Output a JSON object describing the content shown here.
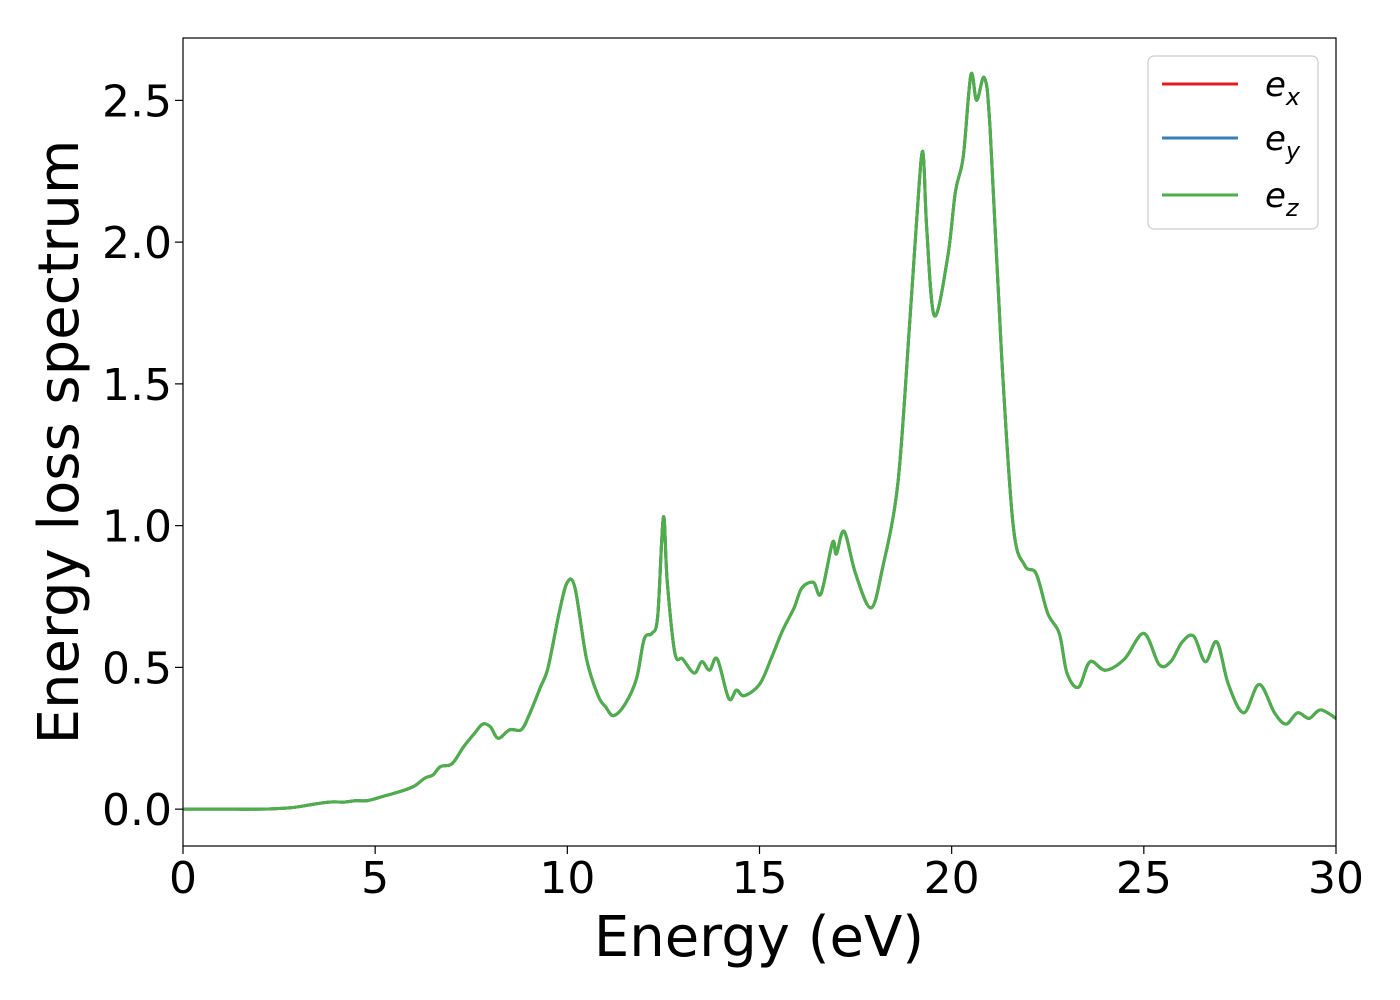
{
  "chart_data": {
    "type": "line",
    "xlabel": "Energy (eV)",
    "ylabel": "Energy loss spectrum",
    "xlim": [
      0,
      30
    ],
    "ylim": [
      -0.13,
      2.72
    ],
    "xticks": [
      0,
      5,
      10,
      15,
      20,
      25,
      30
    ],
    "xtick_labels": [
      "0",
      "5",
      "10",
      "15",
      "20",
      "25",
      "30"
    ],
    "yticks": [
      0.0,
      0.5,
      1.0,
      1.5,
      2.0,
      2.5
    ],
    "ytick_labels": [
      "0.0",
      "0.5",
      "1.0",
      "1.5",
      "2.0",
      "2.5"
    ],
    "grid": false,
    "legend_position": "top-right",
    "x": [
      0,
      1,
      2,
      2.8,
      3.3,
      3.8,
      4.2,
      4.5,
      4.8,
      5.2,
      5.6,
      6.0,
      6.3,
      6.5,
      6.7,
      7.0,
      7.3,
      7.6,
      7.8,
      8.0,
      8.2,
      8.5,
      8.8,
      9.0,
      9.3,
      9.5,
      9.8,
      10.0,
      10.2,
      10.5,
      10.8,
      11.0,
      11.2,
      11.5,
      11.8,
      12.0,
      12.2,
      12.35,
      12.5,
      12.6,
      12.8,
      13.0,
      13.3,
      13.5,
      13.7,
      13.9,
      14.2,
      14.4,
      14.6,
      15.0,
      15.3,
      15.6,
      15.9,
      16.1,
      16.4,
      16.6,
      16.9,
      17.0,
      17.2,
      17.5,
      17.9,
      18.2,
      18.6,
      18.9,
      19.1,
      19.25,
      19.35,
      19.55,
      19.9,
      20.1,
      20.3,
      20.5,
      20.65,
      20.85,
      21.0,
      21.3,
      21.6,
      21.9,
      22.2,
      22.5,
      22.8,
      23.0,
      23.3,
      23.6,
      24.0,
      24.5,
      25.0,
      25.4,
      25.7,
      26.0,
      26.3,
      26.6,
      26.9,
      27.2,
      27.6,
      28.0,
      28.4,
      28.7,
      29.0,
      29.3,
      29.6,
      30.0
    ],
    "series": [
      {
        "name": "e_x",
        "label_base": "e",
        "label_sub": "x",
        "color": "#e41a1c",
        "values": [
          0.0,
          0.0,
          0.0,
          0.005,
          0.015,
          0.025,
          0.025,
          0.03,
          0.03,
          0.045,
          0.06,
          0.08,
          0.11,
          0.12,
          0.15,
          0.16,
          0.22,
          0.27,
          0.3,
          0.29,
          0.25,
          0.28,
          0.28,
          0.33,
          0.43,
          0.5,
          0.7,
          0.8,
          0.78,
          0.53,
          0.4,
          0.36,
          0.33,
          0.37,
          0.46,
          0.6,
          0.62,
          0.68,
          1.03,
          0.8,
          0.55,
          0.53,
          0.48,
          0.52,
          0.49,
          0.53,
          0.39,
          0.42,
          0.4,
          0.44,
          0.53,
          0.63,
          0.71,
          0.78,
          0.8,
          0.76,
          0.94,
          0.9,
          0.98,
          0.83,
          0.71,
          0.85,
          1.15,
          1.7,
          2.1,
          2.32,
          2.05,
          1.74,
          1.95,
          2.18,
          2.3,
          2.59,
          2.5,
          2.58,
          2.4,
          1.6,
          1.0,
          0.86,
          0.83,
          0.69,
          0.62,
          0.48,
          0.43,
          0.52,
          0.49,
          0.53,
          0.62,
          0.51,
          0.52,
          0.59,
          0.61,
          0.52,
          0.59,
          0.44,
          0.34,
          0.44,
          0.34,
          0.3,
          0.34,
          0.32,
          0.35,
          0.32
        ]
      },
      {
        "name": "e_y",
        "label_base": "e",
        "label_sub": "y",
        "color": "#377eb8",
        "values": [
          0.0,
          0.0,
          0.0,
          0.005,
          0.015,
          0.025,
          0.025,
          0.03,
          0.03,
          0.045,
          0.06,
          0.08,
          0.11,
          0.12,
          0.15,
          0.16,
          0.22,
          0.27,
          0.3,
          0.29,
          0.25,
          0.28,
          0.28,
          0.33,
          0.43,
          0.5,
          0.7,
          0.8,
          0.78,
          0.53,
          0.4,
          0.36,
          0.33,
          0.37,
          0.46,
          0.6,
          0.62,
          0.68,
          1.03,
          0.8,
          0.55,
          0.53,
          0.48,
          0.52,
          0.49,
          0.53,
          0.39,
          0.42,
          0.4,
          0.44,
          0.53,
          0.63,
          0.71,
          0.78,
          0.8,
          0.76,
          0.94,
          0.9,
          0.98,
          0.83,
          0.71,
          0.85,
          1.15,
          1.7,
          2.1,
          2.32,
          2.05,
          1.74,
          1.95,
          2.18,
          2.3,
          2.59,
          2.5,
          2.58,
          2.4,
          1.6,
          1.0,
          0.86,
          0.83,
          0.69,
          0.62,
          0.48,
          0.43,
          0.52,
          0.49,
          0.53,
          0.62,
          0.51,
          0.52,
          0.59,
          0.61,
          0.52,
          0.59,
          0.44,
          0.34,
          0.44,
          0.34,
          0.3,
          0.34,
          0.32,
          0.35,
          0.32
        ]
      },
      {
        "name": "e_z",
        "label_base": "e",
        "label_sub": "z",
        "color": "#4daf4a",
        "values": [
          0.0,
          0.0,
          0.0,
          0.005,
          0.015,
          0.025,
          0.025,
          0.03,
          0.03,
          0.045,
          0.06,
          0.08,
          0.11,
          0.12,
          0.15,
          0.16,
          0.22,
          0.27,
          0.3,
          0.29,
          0.25,
          0.28,
          0.28,
          0.33,
          0.43,
          0.5,
          0.7,
          0.8,
          0.78,
          0.53,
          0.4,
          0.36,
          0.33,
          0.37,
          0.46,
          0.6,
          0.62,
          0.68,
          1.03,
          0.8,
          0.55,
          0.53,
          0.48,
          0.52,
          0.49,
          0.53,
          0.39,
          0.42,
          0.4,
          0.44,
          0.53,
          0.63,
          0.71,
          0.78,
          0.8,
          0.76,
          0.94,
          0.9,
          0.98,
          0.83,
          0.71,
          0.85,
          1.15,
          1.7,
          2.1,
          2.32,
          2.05,
          1.74,
          1.95,
          2.18,
          2.3,
          2.59,
          2.5,
          2.58,
          2.4,
          1.6,
          1.0,
          0.86,
          0.83,
          0.69,
          0.62,
          0.48,
          0.43,
          0.52,
          0.49,
          0.53,
          0.62,
          0.51,
          0.52,
          0.59,
          0.61,
          0.52,
          0.59,
          0.44,
          0.34,
          0.44,
          0.34,
          0.3,
          0.34,
          0.32,
          0.35,
          0.32
        ]
      }
    ]
  }
}
